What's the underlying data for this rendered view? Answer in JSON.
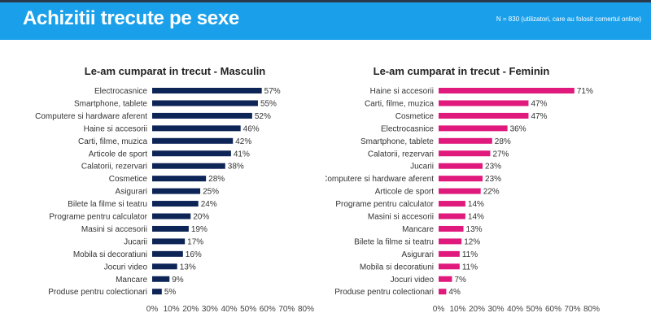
{
  "header": {
    "title": "Achizitii trecute pe sexe",
    "note": "N = 830 (utilizatori, care au folosit comertul online)"
  },
  "colors": {
    "header_bg": "#1aa0ea",
    "male_bar": "#0d2457",
    "female_bar": "#e0197d"
  },
  "chart_data": [
    {
      "type": "bar",
      "orientation": "horizontal",
      "title": "Le-am cumparat in trecut - Masculin",
      "categories": [
        "Electrocasnice",
        "Smartphone, tablete",
        "Computere si hardware aferent",
        "Haine si accesorii",
        "Carti, filme, muzica",
        "Articole de sport",
        "Calatorii, rezervari",
        "Cosmetice",
        "Asigurari",
        "Bilete la filme si teatru",
        "Programe pentru calculator",
        "Masini si accesorii",
        "Jucarii",
        "Mobila si decoratiuni",
        "Jocuri video",
        "Mancare",
        "Produse pentru colectionari"
      ],
      "values": [
        57,
        55,
        52,
        46,
        42,
        41,
        38,
        28,
        25,
        24,
        20,
        19,
        17,
        16,
        13,
        9,
        5
      ],
      "value_labels": [
        "57%",
        "55%",
        "52%",
        "46%",
        "42%",
        "41%",
        "38%",
        "28%",
        "25%",
        "24%",
        "20%",
        "19%",
        "17%",
        "16%",
        "13%",
        "9%",
        "5%"
      ],
      "xlim": [
        0,
        80
      ],
      "xticks": [
        "0%",
        "10%",
        "20%",
        "30%",
        "40%",
        "50%",
        "60%",
        "70%",
        "80%"
      ],
      "color": "#0d2457",
      "grid": false
    },
    {
      "type": "bar",
      "orientation": "horizontal",
      "title": "Le-am cumparat in trecut - Feminin",
      "categories": [
        "Haine si accesorii",
        "Carti, filme, muzica",
        "Cosmetice",
        "Electrocasnice",
        "Smartphone, tablete",
        "Calatorii, rezervari",
        "Jucarii",
        "Computere si hardware aferent",
        "Articole de sport",
        "Programe pentru calculator",
        "Masini si accesorii",
        "Mancare",
        "Bilete la filme si teatru",
        "Asigurari",
        "Mobila si decoratiuni",
        "Jocuri video",
        "Produse pentru colectionari"
      ],
      "values": [
        71,
        47,
        47,
        36,
        28,
        27,
        23,
        23,
        22,
        14,
        14,
        13,
        12,
        11,
        11,
        7,
        4
      ],
      "value_labels": [
        "71%",
        "47%",
        "47%",
        "36%",
        "28%",
        "27%",
        "23%",
        "23%",
        "22%",
        "14%",
        "14%",
        "13%",
        "12%",
        "11%",
        "11%",
        "7%",
        "4%"
      ],
      "xlim": [
        0,
        80
      ],
      "xticks": [
        "0%",
        "10%",
        "20%",
        "30%",
        "40%",
        "50%",
        "60%",
        "70%",
        "80%"
      ],
      "color": "#e0197d",
      "grid": false
    }
  ]
}
